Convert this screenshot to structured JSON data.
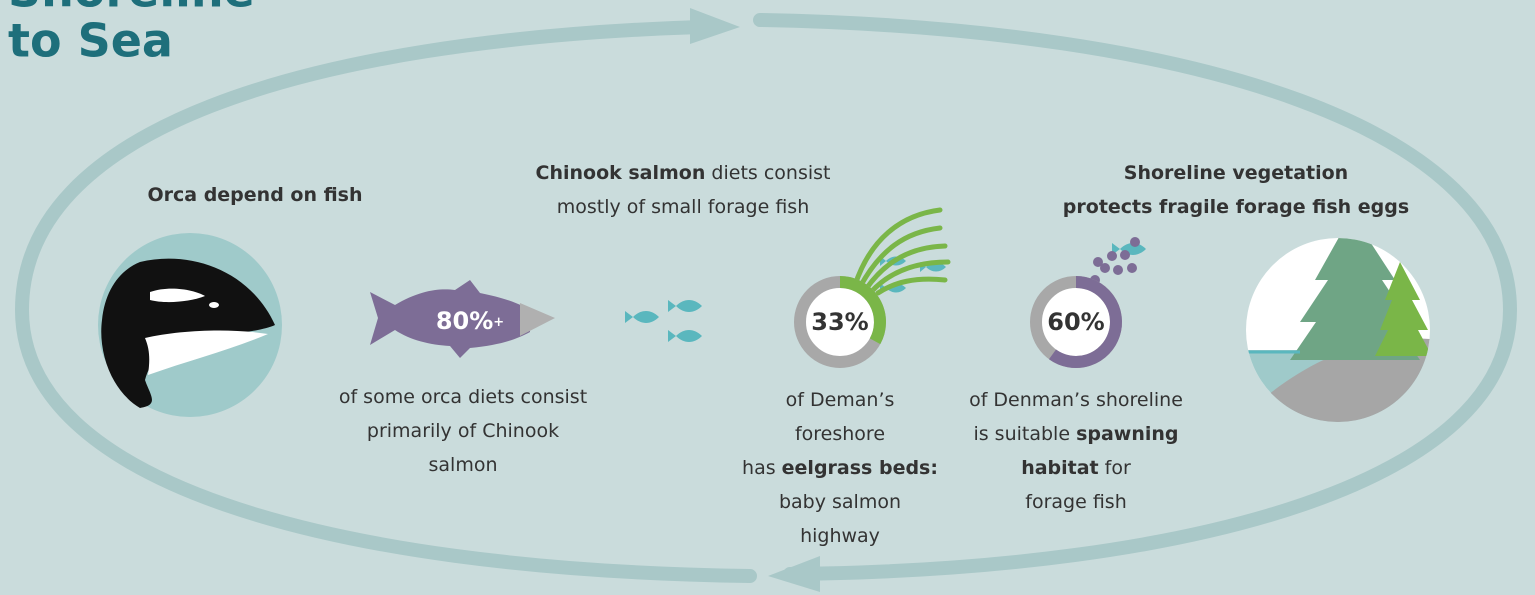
{
  "title": {
    "lines": [
      "Shoreline",
      "to Sea"
    ]
  },
  "blocks": [
    {
      "lines": [
        [
          {
            "text": "Orca depend on fish",
            "bold": true
          }
        ]
      ]
    },
    {
      "lines": [
        [
          {
            "text": "Chinook salmon",
            "bold": true
          },
          {
            "text": " diets consist",
            "bold": false
          }
        ],
        [
          {
            "text": "mostly of small forage fish",
            "bold": false
          }
        ]
      ]
    },
    {
      "lines": [
        [
          {
            "text": "Shoreline vegetation",
            "bold": true
          }
        ],
        [
          {
            "text": "protects fragile forage fish eggs",
            "bold": true
          }
        ]
      ]
    },
    {
      "lines": [
        [
          {
            "text": "of some orca diets consist",
            "bold": false
          }
        ],
        [
          {
            "text": "primarily of Chinook",
            "bold": false
          }
        ],
        [
          {
            "text": "salmon",
            "bold": false
          }
        ]
      ]
    },
    {
      "lines": [
        [
          {
            "text": "of Deman’s",
            "bold": false
          }
        ],
        [
          {
            "text": "foreshore",
            "bold": false
          }
        ],
        [
          {
            "text": "has ",
            "bold": false
          },
          {
            "text": "eelgrass beds:",
            "bold": true
          }
        ],
        [
          {
            "text": "baby salmon",
            "bold": false
          }
        ],
        [
          {
            "text": "highway",
            "bold": false
          }
        ]
      ]
    },
    {
      "lines": [
        [
          {
            "text": "of Denman’s shoreline",
            "bold": false
          }
        ],
        [
          {
            "text": "is suitable ",
            "bold": false
          },
          {
            "text": "spawning",
            "bold": true
          }
        ],
        [
          {
            "text": "habitat",
            "bold": true
          },
          {
            "text": " for",
            "bold": false
          }
        ],
        [
          {
            "text": "forage fish",
            "bold": false
          }
        ]
      ]
    }
  ],
  "salmon_label": {
    "text": "80%",
    "suffix": "+"
  },
  "rings": [
    {
      "value": 33,
      "label": "33%"
    },
    {
      "value": 60,
      "label": "60%"
    }
  ]
}
